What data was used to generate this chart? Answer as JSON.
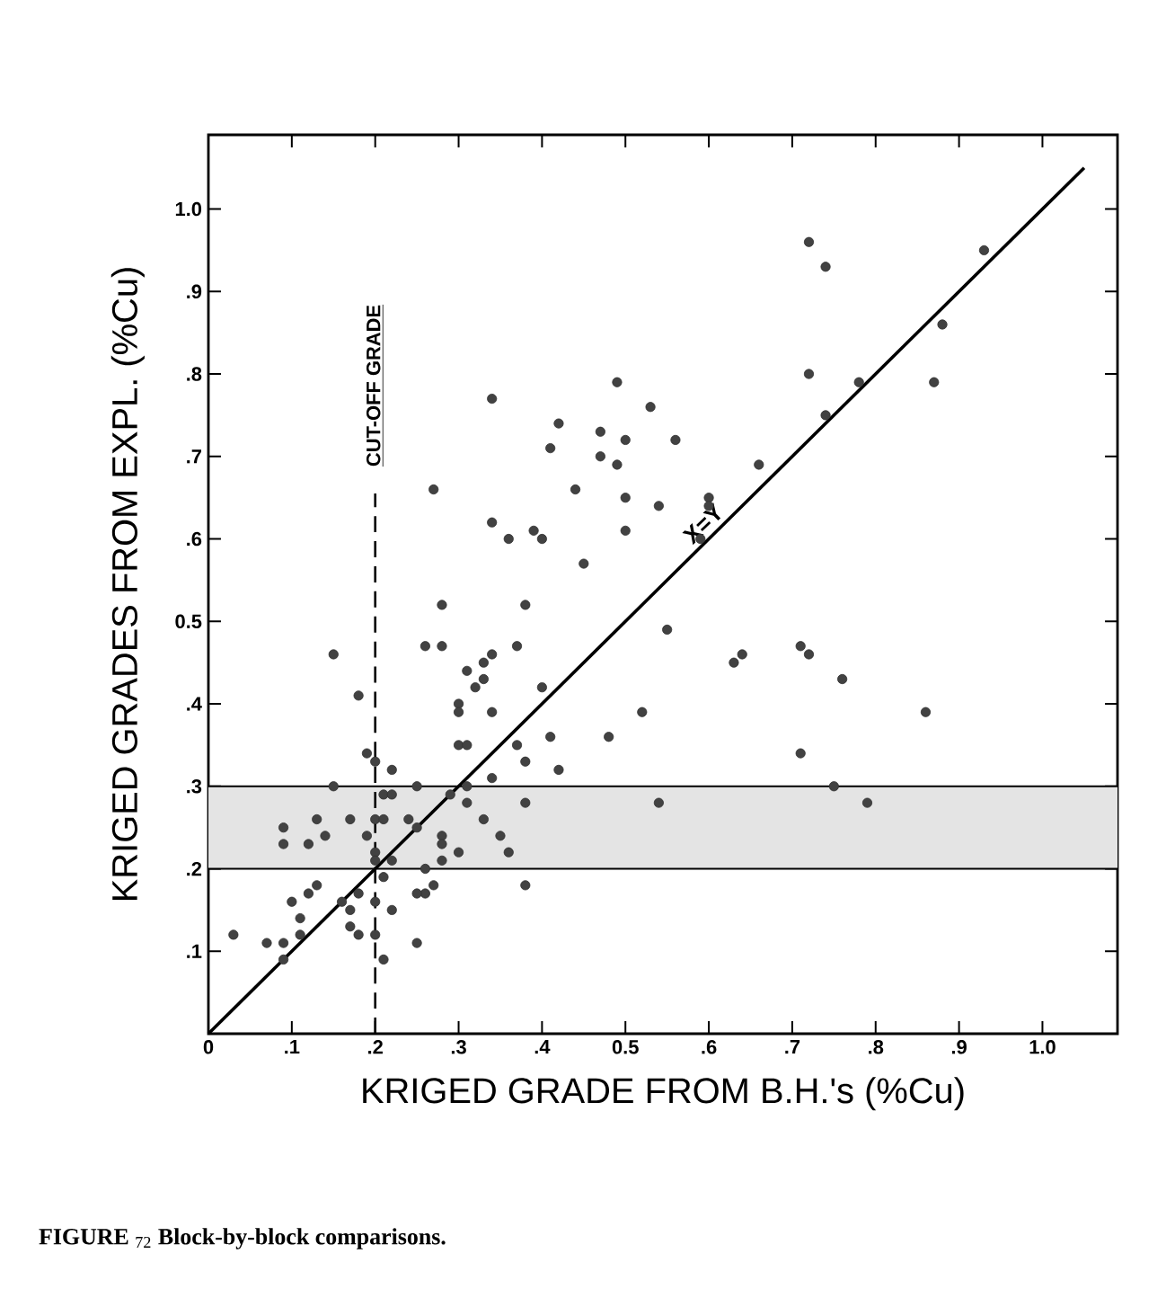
{
  "chart_data": {
    "type": "scatter",
    "xlabel": "KRIGED  GRADE  FROM  B.H.'s (%Cu)",
    "ylabel": "KRIGED  GRADES  FROM  EXPL. (%Cu)",
    "annotations": [
      {
        "text": "X=Y",
        "x": 0.63,
        "y": 0.63
      },
      "**FIGURE** $_{72}$ **Block-by-block comparisons.**"
    ],
    "series": [
      {
        "marker": "circle",
        "color": "#333333",
        "x": [
          0.27,
          0.34,
          0.42,
          0.41,
          0.49,
          0.47,
          0.47,
          0.5,
          0.49,
          0.44,
          0.5,
          0.5,
          0.34,
          0.36,
          0.39,
          0.4,
          0.45,
          0.28,
          0.38,
          0.74,
          0.93,
          0.88,
          0.72,
          0.78,
          0.87,
          0.74,
          0.53,
          0.56,
          0.6,
          0.6,
          0.66,
          0.54,
          0.59,
          0.72,
          0.15,
          0.18,
          0.19,
          0.26,
          0.28,
          0.34,
          0.33,
          0.31,
          0.33,
          0.32,
          0.37,
          0.4,
          0.3,
          0.3,
          0.34,
          0.3,
          0.31,
          0.37,
          0.38,
          0.41,
          0.42,
          0.48,
          0.38,
          0.38,
          0.15,
          0.2,
          0.22,
          0.21,
          0.22,
          0.25,
          0.29,
          0.31,
          0.34,
          0.31,
          0.09,
          0.09,
          0.13,
          0.12,
          0.14,
          0.17,
          0.19,
          0.2,
          0.2,
          0.21,
          0.24,
          0.25,
          0.28,
          0.28,
          0.33,
          0.35,
          0.36,
          0.3,
          0.2,
          0.22,
          0.21,
          0.26,
          0.28,
          0.13,
          0.12,
          0.26,
          0.27,
          0.25,
          0.1,
          0.11,
          0.11,
          0.16,
          0.17,
          0.17,
          0.18,
          0.18,
          0.2,
          0.22,
          0.2,
          0.25,
          0.21,
          0.03,
          0.07,
          0.09,
          0.09,
          0.55,
          0.63,
          0.64,
          0.71,
          0.72,
          0.76,
          0.86,
          0.52,
          0.71,
          0.54,
          0.75,
          0.79
        ],
        "values": [
          0.66,
          0.77,
          0.74,
          0.71,
          0.79,
          0.73,
          0.7,
          0.72,
          0.69,
          0.66,
          0.65,
          0.61,
          0.62,
          0.6,
          0.61,
          0.6,
          0.57,
          0.52,
          0.52,
          0.93,
          0.95,
          0.86,
          0.8,
          0.79,
          0.79,
          0.75,
          0.76,
          0.72,
          0.65,
          0.64,
          0.69,
          0.64,
          0.6,
          0.96,
          0.46,
          0.41,
          0.34,
          0.47,
          0.47,
          0.46,
          0.45,
          0.44,
          0.43,
          0.42,
          0.47,
          0.42,
          0.4,
          0.39,
          0.39,
          0.35,
          0.35,
          0.35,
          0.33,
          0.36,
          0.32,
          0.36,
          0.28,
          0.18,
          0.3,
          0.33,
          0.32,
          0.29,
          0.29,
          0.3,
          0.29,
          0.3,
          0.31,
          0.28,
          0.25,
          0.23,
          0.26,
          0.23,
          0.24,
          0.26,
          0.24,
          0.26,
          0.22,
          0.26,
          0.26,
          0.25,
          0.24,
          0.23,
          0.26,
          0.24,
          0.22,
          0.22,
          0.21,
          0.21,
          0.19,
          0.2,
          0.21,
          0.18,
          0.17,
          0.17,
          0.18,
          0.17,
          0.16,
          0.14,
          0.12,
          0.16,
          0.15,
          0.13,
          0.12,
          0.17,
          0.16,
          0.15,
          0.12,
          0.11,
          0.09,
          0.12,
          0.11,
          0.11,
          0.09,
          0.49,
          0.45,
          0.46,
          0.47,
          0.46,
          0.43,
          0.39,
          0.39,
          0.34,
          0.28,
          0.3,
          0.28
        ]
      },
      {
        "type": "line",
        "marker": "none",
        "line_style": "solid",
        "color": "#000000",
        "x": [
          0,
          1.05
        ],
        "values": [
          0,
          1.05
        ]
      }
    ],
    "ref_lines": [
      {
        "axis": "x",
        "value": 0.2,
        "label": "CUT-OFF GRADE",
        "line_style": "dashed",
        "color": "#000000"
      },
      {
        "axis": "y",
        "value": 0.2,
        "line_style": "solid",
        "color": "#000000"
      },
      {
        "axis": "y",
        "value": 0.3,
        "line_style": "solid",
        "color": "#000000"
      }
    ],
    "bands": [
      {
        "axis": "y",
        "from": 0.2,
        "to": 0.3,
        "color": "#e4e4e4"
      }
    ],
    "xlim": [
      0,
      1.09
    ],
    "ylim": [
      0,
      1.09
    ],
    "xticks": [
      0,
      {
        "value": 0.1,
        "label": ".1"
      },
      {
        "value": 0.2,
        "label": ".2"
      },
      {
        "value": 0.3,
        "label": ".3"
      },
      {
        "value": 0.4,
        "label": ".4"
      },
      0.5,
      {
        "value": 0.6,
        "label": ".6"
      },
      {
        "value": 0.7,
        "label": ".7"
      },
      {
        "value": 0.8,
        "label": ".8"
      },
      {
        "value": 0.9,
        "label": ".9"
      },
      {
        "value": 1,
        "label": "1.0"
      }
    ],
    "yticks": [
      {
        "value": 0.1,
        "label": ".1"
      },
      {
        "value": 0.2,
        "label": ".2"
      },
      {
        "value": 0.3,
        "label": ".3"
      },
      {
        "value": 0.4,
        "label": ".4"
      },
      0.5,
      {
        "value": 0.6,
        "label": ".6"
      },
      {
        "value": 0.7,
        "label": ".7"
      },
      {
        "value": 0.8,
        "label": ".8"
      },
      {
        "value": 0.9,
        "label": ".9"
      },
      {
        "value": 1,
        "label": "1.0"
      }
    ],
    "grid": false
  }
}
